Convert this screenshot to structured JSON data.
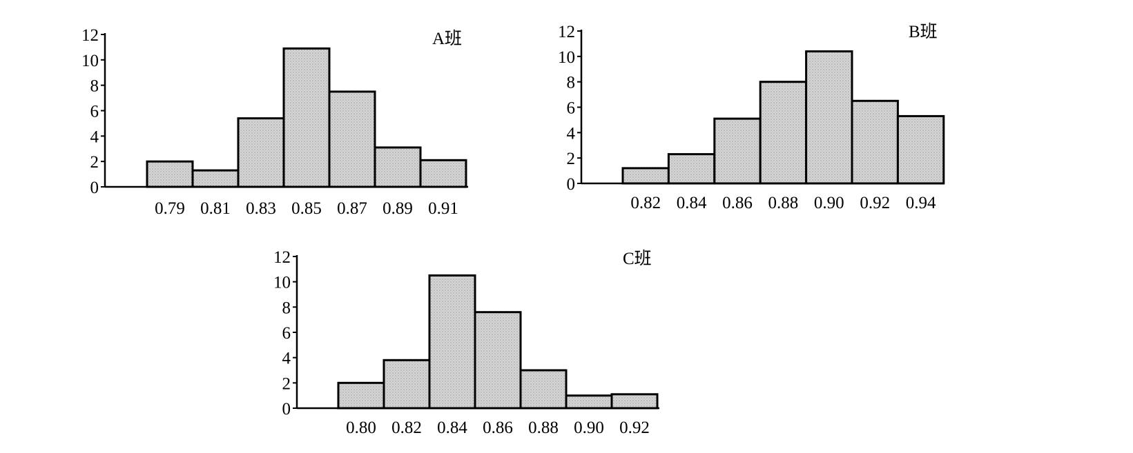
{
  "chart_data": [
    {
      "type": "bar",
      "title": "A班",
      "xlabel": "",
      "ylabel": "",
      "x_ticks": [
        "0.79",
        "0.81",
        "0.83",
        "0.85",
        "0.87",
        "0.89",
        "0.91"
      ],
      "values": [
        2,
        1.3,
        5.4,
        10.9,
        7.5,
        3.1,
        2.1
      ],
      "y_ticks": [
        "0",
        "2",
        "4",
        "6",
        "8",
        "10",
        "12"
      ],
      "ylim": [
        0,
        12
      ],
      "grid": false,
      "legend": "none",
      "bar_color": "#d9d9d9"
    },
    {
      "type": "bar",
      "title": "B班",
      "xlabel": "",
      "ylabel": "",
      "x_ticks": [
        "0.82",
        "0.84",
        "0.86",
        "0.88",
        "0.90",
        "0.92",
        "0.94"
      ],
      "values": [
        1.2,
        2.3,
        5.1,
        8,
        10.4,
        6.5,
        5.3
      ],
      "y_ticks": [
        "0",
        "2",
        "4",
        "6",
        "8",
        "10",
        "12"
      ],
      "ylim": [
        0,
        12
      ],
      "grid": false,
      "legend": "none",
      "bar_color": "#d9d9d9"
    },
    {
      "type": "bar",
      "title": "C班",
      "xlabel": "",
      "ylabel": "",
      "x_ticks": [
        "0.80",
        "0.82",
        "0.84",
        "0.86",
        "0.88",
        "0.90",
        "0.92"
      ],
      "values": [
        2,
        3.8,
        10.5,
        7.6,
        3,
        1,
        1.1
      ],
      "y_ticks": [
        "0",
        "2",
        "4",
        "6",
        "8",
        "10",
        "12"
      ],
      "ylim": [
        0,
        12
      ],
      "grid": false,
      "legend": "none",
      "bar_color": "#d9d9d9"
    }
  ]
}
